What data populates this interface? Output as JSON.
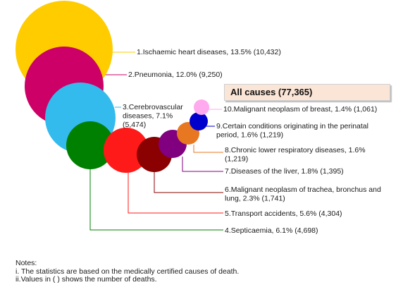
{
  "chart_data": {
    "type": "bubble",
    "total_label": "All causes  (77,365)",
    "bubbles": [
      {
        "label": [
          "1.Ischaemic heart diseases, 13.5% (10,432)"
        ],
        "percent": 13.5,
        "deaths": 10432,
        "color": "#ffcc00"
      },
      {
        "label": [
          "2.Pneumonia, 12.0% (9,250)"
        ],
        "percent": 12.0,
        "deaths": 9250,
        "color": "#cc0066"
      },
      {
        "label": [
          "3.Cerebrovascular",
          "diseases, 7.1%",
          "(5,474)"
        ],
        "percent": 7.1,
        "deaths": 5474,
        "color": "#33bbee"
      },
      {
        "label": [
          "4.Septicaemia, 6.1% (4,698)"
        ],
        "percent": 6.1,
        "deaths": 4698,
        "color": "#008000"
      },
      {
        "label": [
          "5.Transport accidents, 5.6% (4,304)"
        ],
        "percent": 5.6,
        "deaths": 4304,
        "color": "#ff1a1a"
      },
      {
        "label": [
          "6.Malignant neoplasm of trachea, bronchus and",
          "lung, 2.3% (1,741)"
        ],
        "percent": 2.3,
        "deaths": 1741,
        "color": "#8b0000"
      },
      {
        "label": [
          "7.Diseases of the liver, 1.8% (1,395)"
        ],
        "percent": 1.8,
        "deaths": 1395,
        "color": "#800080"
      },
      {
        "label": [
          "8.Chronic lower respiratory diseases, 1.6%",
          "(1,219)"
        ],
        "percent": 1.6,
        "deaths": 1219,
        "color": "#e87722"
      },
      {
        "label": [
          "9.Certain conditions originating in the perinatal",
          "period, 1.6% (1,219)"
        ],
        "percent": 1.6,
        "deaths": 1219,
        "color": "#0000cc"
      },
      {
        "label": [
          "10.Malignant neoplasm of breast, 1.4% (1,061)"
        ],
        "percent": 1.4,
        "deaths": 1061,
        "color": "#ffaaee"
      }
    ]
  },
  "notes": {
    "title": "Notes:",
    "line1": "i. The statistics are based on the medically certified causes of death.",
    "line2": "ii.Values in (  ) shows the number of deaths."
  }
}
